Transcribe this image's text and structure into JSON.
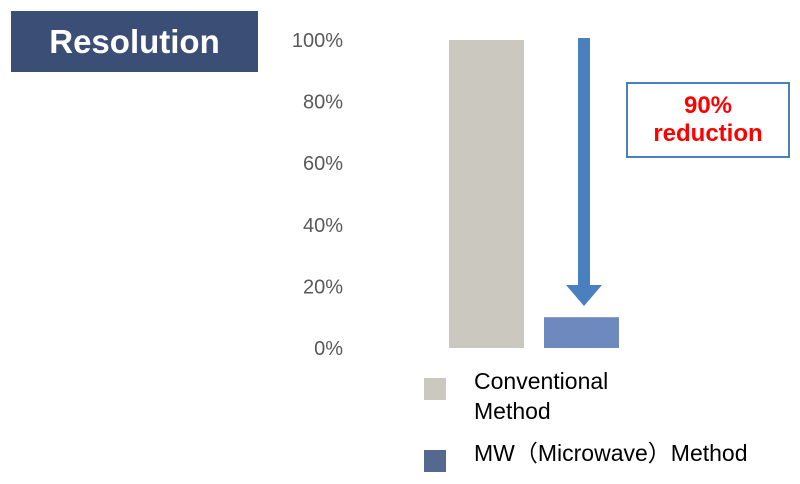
{
  "title": "Resolution",
  "callout": {
    "line1": "90%",
    "line2": "reduction"
  },
  "chart_data": {
    "type": "bar",
    "categories": [
      "Conventional Method",
      "MW（Microwave）Method"
    ],
    "values": [
      100,
      10
    ],
    "ylim": [
      0,
      100
    ],
    "yticks": [
      "0%",
      "20%",
      "40%",
      "60%",
      "80%",
      "100%"
    ],
    "colors": [
      "#cbc8bf",
      "#6d89bd"
    ],
    "legend_colors": [
      "#cbc8bf",
      "#53698f"
    ],
    "arrow_color": "#4a7fc0",
    "legend_position": "bottom",
    "annotation": "90% reduction"
  },
  "legend": {
    "items": [
      {
        "label": "Conventional Method",
        "color": "#cbc8bf"
      },
      {
        "label": "MW（Microwave）Method",
        "color": "#53698f"
      }
    ]
  }
}
